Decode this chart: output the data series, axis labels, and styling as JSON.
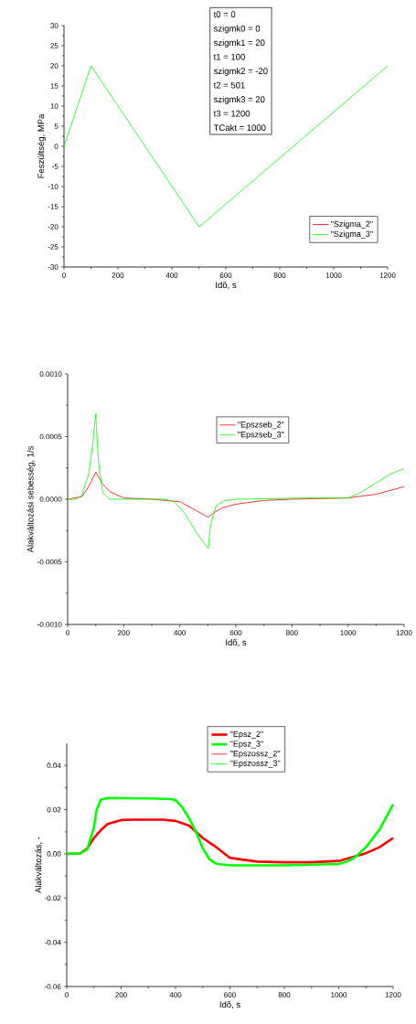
{
  "chart_data": [
    {
      "type": "line",
      "xlabel": "Idõ, s",
      "ylabel": "Feszültség, MPa",
      "annotations": [
        "t0 = 0",
        "szigmk0 = 0",
        "szigmk1 = 20",
        "t1 = 100",
        "szigmk2 = -20",
        "t2 = 501",
        "szigmk3 = 20",
        "t3 = 1200",
        "TCakt = 1000"
      ],
      "x": [
        0,
        100,
        501,
        1200
      ],
      "series": [
        {
          "name": "\"Szigma_2\"",
          "color": "#ff0000",
          "values": [
            null,
            null,
            null,
            null
          ]
        },
        {
          "name": "\"Szigma_3\"",
          "color": "#00ff00",
          "values": [
            0,
            20,
            -20,
            20
          ]
        }
      ],
      "xlim": [
        0,
        1200
      ],
      "xticks": [
        0,
        200,
        400,
        600,
        800,
        1000,
        1200
      ],
      "ylim": [
        -30,
        30
      ],
      "yticks": [
        -30,
        -25,
        -20,
        -15,
        -10,
        -5,
        0,
        5,
        10,
        15,
        20,
        25,
        30
      ],
      "legend": "bottom right",
      "grid": false
    },
    {
      "type": "line",
      "xlabel": "Idõ, s",
      "ylabel": "Alakváltozási sebesség, 1/s",
      "series": [
        {
          "name": "\"Epszseb_2\"",
          "color": "#ff0000",
          "x": [
            0,
            50,
            75,
            100,
            125,
            150,
            200,
            300,
            400,
            450,
            501,
            520,
            550,
            600,
            700,
            800,
            1000,
            1100,
            1200
          ],
          "values": [
            0,
            2e-05,
            0.0001,
            0.000215,
            0.00012,
            6e-05,
            1e-05,
            0,
            -2e-05,
            -8e-05,
            -0.000144,
            -0.00011,
            -7e-05,
            -4e-05,
            -1e-05,
            0,
            1e-05,
            4e-05,
            0.0001
          ]
        },
        {
          "name": "\"Epszseb_3\"",
          "color": "#00ff00",
          "x": [
            0,
            30,
            50,
            75,
            90,
            100,
            110,
            125,
            150,
            350,
            380,
            420,
            460,
            501,
            510,
            530,
            560,
            600,
            850,
            1000,
            1050,
            1100,
            1150,
            1200
          ],
          "values": [
            0,
            0,
            3e-05,
            0.0002,
            0.00045,
            0.00068,
            0.0003,
            5e-05,
            0,
            0,
            -2e-05,
            -0.00012,
            -0.00027,
            -0.000395,
            -0.0002,
            -5e-05,
            -1e-05,
            0,
            1e-05,
            1e-05,
            6e-05,
            0.00013,
            0.0002,
            0.000244
          ]
        }
      ],
      "xlim": [
        0,
        1200
      ],
      "xticks": [
        0,
        200,
        400,
        600,
        800,
        1000,
        1200
      ],
      "ylim": [
        -0.001,
        0.001
      ],
      "yticks": [
        {
          "value": -0.001,
          "label": "-0.0010"
        },
        {
          "value": -0.0005,
          "label": "-0.0005"
        },
        {
          "value": 0,
          "label": "0.0000"
        },
        {
          "value": 0.0005,
          "label": "0.0005"
        },
        {
          "value": 0.001,
          "label": "0.0010"
        }
      ],
      "legend": "top",
      "grid": false
    },
    {
      "type": "line",
      "xlabel": "Idõ, s",
      "ylabel": "Alakváltozás, -",
      "series": [
        {
          "name": "\"Epsz_2\"",
          "color": "#ff0000",
          "x": [
            0,
            50,
            75,
            100,
            125,
            150,
            200,
            250,
            350,
            400,
            450,
            500,
            550,
            600,
            700,
            800,
            900,
            1000,
            1050,
            1100,
            1150,
            1200
          ],
          "values": [
            0,
            0.0002,
            0.0024,
            0.0072,
            0.0107,
            0.0135,
            0.0153,
            0.0155,
            0.0155,
            0.0149,
            0.0128,
            0.0072,
            0.003,
            -0.0018,
            -0.0035,
            -0.0038,
            -0.0038,
            -0.0032,
            -0.0015,
            0.0003,
            0.003,
            0.0072
          ]
        },
        {
          "name": "\"Epsz_3\"",
          "color": "#00ff00",
          "x": [
            0,
            50,
            75,
            100,
            110,
            125,
            150,
            300,
            380,
            400,
            425,
            450,
            475,
            500,
            525,
            550,
            600,
            800,
            1000,
            1030,
            1060,
            1100,
            1150,
            1200
          ],
          "values": [
            0,
            0.0002,
            0.002,
            0.012,
            0.02,
            0.0245,
            0.0253,
            0.0251,
            0.0248,
            0.0243,
            0.021,
            0.016,
            0.01,
            0.0025,
            -0.0025,
            -0.0045,
            -0.0052,
            -0.0052,
            -0.0046,
            -0.0035,
            -0.0015,
            0.003,
            0.011,
            0.0225
          ]
        },
        {
          "name": "\"Epszossz_2\"",
          "color": "#ff0000",
          "values": [
            null
          ]
        },
        {
          "name": "\"Epszossz_3\"",
          "color": "#00ff00",
          "values": [
            null
          ]
        }
      ],
      "xlim": [
        0,
        1200
      ],
      "xticks": [
        0,
        200,
        400,
        600,
        800,
        1000,
        1200
      ],
      "ylim": [
        -0.06,
        0.05
      ],
      "yticks": [
        -0.06,
        -0.04,
        -0.02,
        {
          "value": 0,
          "label": "0.00"
        },
        0.02,
        0.04
      ],
      "legend": "top",
      "grid": false
    }
  ]
}
